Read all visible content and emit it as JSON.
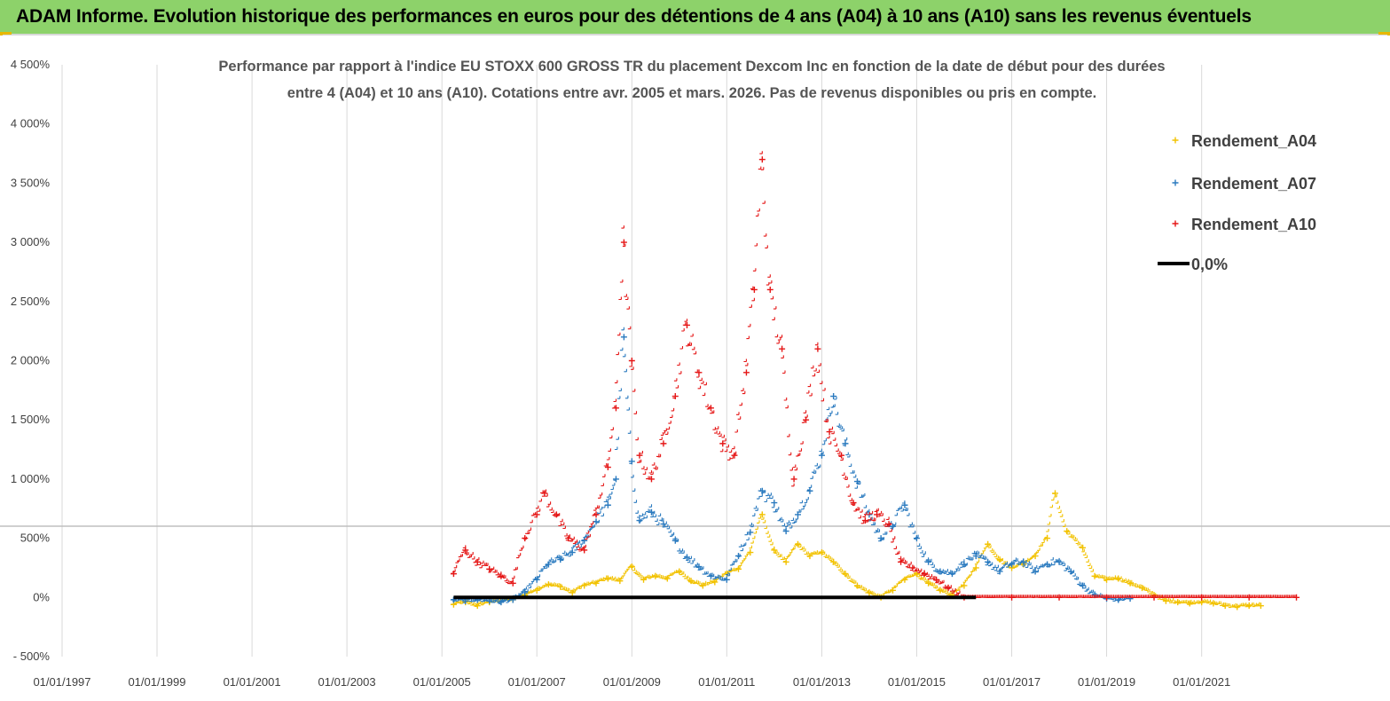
{
  "header": {
    "title": "ADAM Informe. Evolution historique des performances en euros pour des détentions de 4 ans (A04) à 10 ans (A10) sans les revenus éventuels"
  },
  "chart_data": {
    "type": "scatter",
    "title_lines": [
      "Performance par rapport à l'indice EU STOXX 600 GROSS TR  du placement Dexcom Inc en fonction de la date de début pour des durées",
      "entre 4 (A04) et 10 ans (A10). Cotations entre avr. 2005 et mars. 2026.  Pas de revenus disponibles ou pris en compte."
    ],
    "xlabel": "",
    "ylabel": "",
    "x_axis": {
      "type": "date",
      "range": [
        "1997-01-01",
        "2023-12-31"
      ],
      "tick_labels": [
        "01/01/1997",
        "01/01/1999",
        "01/01/2001",
        "01/01/2003",
        "01/01/2005",
        "01/01/2007",
        "01/01/2009",
        "01/01/2011",
        "01/01/2013",
        "01/01/2015",
        "01/01/2017",
        "01/01/2019",
        "01/01/2021"
      ],
      "grid": true
    },
    "y_axis": {
      "unit": "%",
      "range": [
        -500,
        4500
      ],
      "tick_values": [
        -500,
        0,
        500,
        1000,
        1500,
        2000,
        2500,
        3000,
        3500,
        4000,
        4500
      ],
      "tick_labels": [
        "- 500%",
        "0%",
        "500%",
        "1 000%",
        "1 500%",
        "2 000%",
        "2 500%",
        "3 000%",
        "3 500%",
        "4 000%",
        "4 500%"
      ],
      "grid": false
    },
    "legend": {
      "position": "top-right"
    },
    "series": [
      {
        "name": "Rendement_A04",
        "color": "#f2c200",
        "marker": "plus",
        "points": [
          [
            "2005-04-01",
            -60
          ],
          [
            "2005-07-01",
            -40
          ],
          [
            "2005-10-01",
            -70
          ],
          [
            "2006-01-01",
            -40
          ],
          [
            "2006-04-01",
            -30
          ],
          [
            "2006-07-01",
            -20
          ],
          [
            "2006-10-01",
            20
          ],
          [
            "2007-01-01",
            60
          ],
          [
            "2007-04-01",
            110
          ],
          [
            "2007-07-01",
            90
          ],
          [
            "2007-10-01",
            40
          ],
          [
            "2008-01-01",
            100
          ],
          [
            "2008-04-01",
            120
          ],
          [
            "2008-07-01",
            160
          ],
          [
            "2008-10-01",
            140
          ],
          [
            "2009-01-01",
            260
          ],
          [
            "2009-04-01",
            150
          ],
          [
            "2009-07-01",
            180
          ],
          [
            "2009-10-01",
            160
          ],
          [
            "2010-01-01",
            220
          ],
          [
            "2010-04-01",
            140
          ],
          [
            "2010-07-01",
            100
          ],
          [
            "2010-10-01",
            130
          ],
          [
            "2011-01-01",
            200
          ],
          [
            "2011-04-01",
            240
          ],
          [
            "2011-07-01",
            380
          ],
          [
            "2011-10-01",
            700
          ],
          [
            "2012-01-01",
            400
          ],
          [
            "2012-04-01",
            300
          ],
          [
            "2012-07-01",
            450
          ],
          [
            "2012-10-01",
            350
          ],
          [
            "2013-01-01",
            380
          ],
          [
            "2013-04-01",
            300
          ],
          [
            "2013-07-01",
            200
          ],
          [
            "2013-10-01",
            100
          ],
          [
            "2014-01-01",
            40
          ],
          [
            "2014-04-01",
            0
          ],
          [
            "2014-07-01",
            60
          ],
          [
            "2014-10-01",
            150
          ],
          [
            "2015-01-01",
            200
          ],
          [
            "2015-04-01",
            120
          ],
          [
            "2015-07-01",
            60
          ],
          [
            "2015-10-01",
            20
          ],
          [
            "2016-01-01",
            100
          ],
          [
            "2016-04-01",
            250
          ],
          [
            "2016-07-01",
            450
          ],
          [
            "2016-10-01",
            320
          ],
          [
            "2017-01-01",
            250
          ],
          [
            "2017-04-01",
            280
          ],
          [
            "2017-07-01",
            350
          ],
          [
            "2017-10-01",
            500
          ],
          [
            "2017-12-01",
            880
          ],
          [
            "2018-03-01",
            560
          ],
          [
            "2018-07-01",
            420
          ],
          [
            "2018-10-01",
            180
          ],
          [
            "2019-01-01",
            150
          ],
          [
            "2019-04-01",
            160
          ],
          [
            "2019-07-01",
            120
          ],
          [
            "2019-10-01",
            80
          ],
          [
            "2020-01-01",
            20
          ],
          [
            "2020-04-01",
            -30
          ],
          [
            "2020-07-01",
            -40
          ],
          [
            "2020-10-01",
            -50
          ],
          [
            "2021-01-01",
            -40
          ],
          [
            "2021-04-01",
            -50
          ],
          [
            "2021-07-01",
            -70
          ],
          [
            "2021-10-01",
            -80
          ],
          [
            "2022-01-01",
            -70
          ],
          [
            "2022-04-01",
            -70
          ]
        ]
      },
      {
        "name": "Rendement_A07",
        "color": "#2a7abf",
        "marker": "plus",
        "points": [
          [
            "2005-04-01",
            -20
          ],
          [
            "2005-07-01",
            -30
          ],
          [
            "2005-10-01",
            -20
          ],
          [
            "2006-01-01",
            -30
          ],
          [
            "2006-04-01",
            -40
          ],
          [
            "2006-07-01",
            -20
          ],
          [
            "2006-10-01",
            40
          ],
          [
            "2007-01-01",
            150
          ],
          [
            "2007-04-01",
            280
          ],
          [
            "2007-07-01",
            320
          ],
          [
            "2007-10-01",
            380
          ],
          [
            "2008-01-01",
            480
          ],
          [
            "2008-04-01",
            640
          ],
          [
            "2008-07-01",
            780
          ],
          [
            "2008-09-01",
            1000
          ],
          [
            "2008-11-01",
            2200
          ],
          [
            "2009-01-01",
            1150
          ],
          [
            "2009-03-01",
            650
          ],
          [
            "2009-06-01",
            720
          ],
          [
            "2009-09-01",
            620
          ],
          [
            "2009-12-01",
            480
          ],
          [
            "2010-03-01",
            340
          ],
          [
            "2010-06-01",
            260
          ],
          [
            "2010-09-01",
            180
          ],
          [
            "2011-01-01",
            150
          ],
          [
            "2011-04-01",
            350
          ],
          [
            "2011-07-01",
            550
          ],
          [
            "2011-10-01",
            900
          ],
          [
            "2012-01-01",
            800
          ],
          [
            "2012-04-01",
            560
          ],
          [
            "2012-07-01",
            700
          ],
          [
            "2012-10-01",
            900
          ],
          [
            "2013-01-01",
            1200
          ],
          [
            "2013-04-01",
            1700
          ],
          [
            "2013-07-01",
            1300
          ],
          [
            "2013-10-01",
            980
          ],
          [
            "2014-01-01",
            700
          ],
          [
            "2014-04-01",
            500
          ],
          [
            "2014-07-01",
            600
          ],
          [
            "2014-10-01",
            780
          ],
          [
            "2015-01-01",
            500
          ],
          [
            "2015-04-01",
            300
          ],
          [
            "2015-07-01",
            220
          ],
          [
            "2015-10-01",
            200
          ],
          [
            "2016-01-01",
            280
          ],
          [
            "2016-04-01",
            350
          ],
          [
            "2016-07-01",
            300
          ],
          [
            "2016-10-01",
            220
          ],
          [
            "2017-01-01",
            280
          ],
          [
            "2017-04-01",
            300
          ],
          [
            "2017-07-01",
            220
          ],
          [
            "2017-10-01",
            280
          ],
          [
            "2018-01-01",
            300
          ],
          [
            "2018-04-01",
            220
          ],
          [
            "2018-07-01",
            100
          ],
          [
            "2018-10-01",
            20
          ],
          [
            "2019-01-01",
            -10
          ],
          [
            "2019-04-01",
            -20
          ],
          [
            "2019-07-01",
            -10
          ]
        ]
      },
      {
        "name": "Rendement_A10",
        "color": "#e51616",
        "marker": "plus",
        "points": [
          [
            "2005-04-01",
            200
          ],
          [
            "2005-07-01",
            400
          ],
          [
            "2005-10-01",
            300
          ],
          [
            "2006-01-01",
            240
          ],
          [
            "2006-04-01",
            180
          ],
          [
            "2006-07-01",
            120
          ],
          [
            "2006-10-01",
            500
          ],
          [
            "2007-01-01",
            700
          ],
          [
            "2007-03-01",
            880
          ],
          [
            "2007-06-01",
            700
          ],
          [
            "2007-09-01",
            500
          ],
          [
            "2008-01-01",
            400
          ],
          [
            "2008-04-01",
            700
          ],
          [
            "2008-07-01",
            1100
          ],
          [
            "2008-09-01",
            1600
          ],
          [
            "2008-11-01",
            3000
          ],
          [
            "2009-01-01",
            2000
          ],
          [
            "2009-03-01",
            1200
          ],
          [
            "2009-06-01",
            1000
          ],
          [
            "2009-09-01",
            1300
          ],
          [
            "2009-12-01",
            1700
          ],
          [
            "2010-03-01",
            2300
          ],
          [
            "2010-06-01",
            1900
          ],
          [
            "2010-09-01",
            1600
          ],
          [
            "2010-12-01",
            1300
          ],
          [
            "2011-03-01",
            1200
          ],
          [
            "2011-06-01",
            1900
          ],
          [
            "2011-08-01",
            2600
          ],
          [
            "2011-10-01",
            3700
          ],
          [
            "2011-12-01",
            2600
          ],
          [
            "2012-03-01",
            2100
          ],
          [
            "2012-06-01",
            1000
          ],
          [
            "2012-09-01",
            1500
          ],
          [
            "2012-12-01",
            2100
          ],
          [
            "2013-03-01",
            1400
          ],
          [
            "2013-06-01",
            1200
          ],
          [
            "2013-09-01",
            800
          ],
          [
            "2013-12-01",
            650
          ],
          [
            "2014-03-01",
            700
          ],
          [
            "2014-06-01",
            620
          ],
          [
            "2014-09-01",
            300
          ],
          [
            "2014-12-01",
            250
          ],
          [
            "2015-03-01",
            200
          ],
          [
            "2015-06-01",
            150
          ],
          [
            "2015-09-01",
            80
          ],
          [
            "2016-01-01",
            0
          ],
          [
            "2017-01-01",
            0
          ],
          [
            "2018-01-01",
            0
          ],
          [
            "2019-01-01",
            0
          ],
          [
            "2020-01-01",
            0
          ],
          [
            "2021-01-01",
            0
          ],
          [
            "2022-01-01",
            0
          ],
          [
            "2022-12-31",
            0
          ]
        ]
      },
      {
        "name": "0,0%",
        "color": "#000000",
        "marker": "line",
        "points": [
          [
            "2005-04-01",
            0
          ],
          [
            "2016-04-01",
            0
          ]
        ]
      }
    ]
  }
}
